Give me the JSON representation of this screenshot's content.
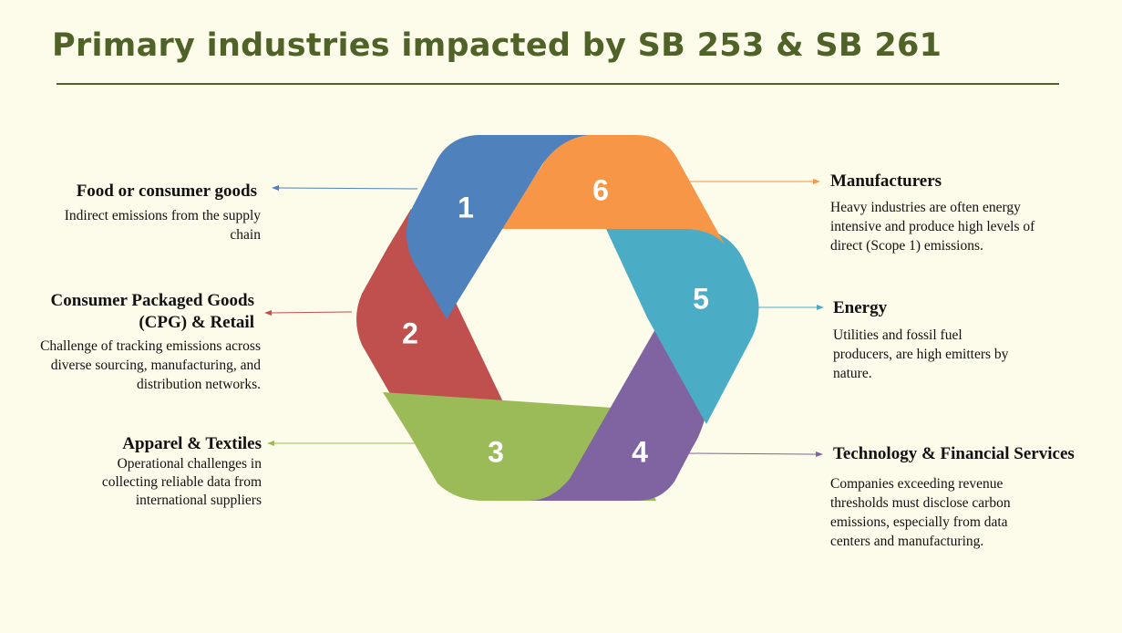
{
  "title": "Primary industries impacted by SB 253 & SB 261",
  "segments": [
    {
      "number": "1",
      "color": "#4f81bd"
    },
    {
      "number": "2",
      "color": "#c0504d"
    },
    {
      "number": "3",
      "color": "#9bbb59"
    },
    {
      "number": "4",
      "color": "#8064a2"
    },
    {
      "number": "5",
      "color": "#4bacc6"
    },
    {
      "number": "6",
      "color": "#f79646"
    }
  ],
  "industries": [
    {
      "heading": "Food or consumer goods",
      "description": "Indirect emissions from the supply chain"
    },
    {
      "heading": "Consumer Packaged Goods (CPG) & Retail",
      "description": "Challenge of tracking emissions across diverse sourcing, manufacturing, and distribution networks."
    },
    {
      "heading": "Apparel & Textiles",
      "description": "Operational challenges in collecting reliable data from international suppliers"
    },
    {
      "heading": "Technology & Financial Services",
      "description": "Companies exceeding revenue thresholds must disclose carbon emissions, especially from data centers and manufacturing."
    },
    {
      "heading": "Energy",
      "description": "Utilities and fossil fuel producers, are high emitters by nature."
    },
    {
      "heading": "Manufacturers",
      "description": "Heavy industries are often energy intensive and produce high levels of direct (Scope 1) emissions."
    }
  ]
}
